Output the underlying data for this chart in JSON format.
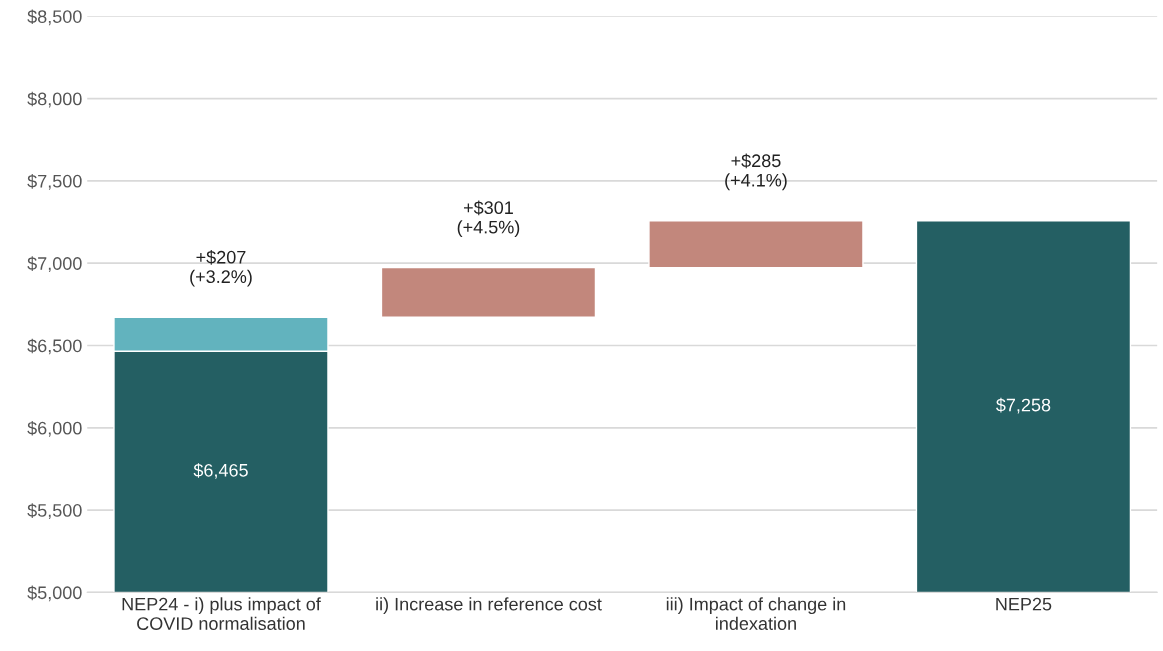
{
  "chart_data": {
    "type": "bar",
    "categories": [
      "NEP24 - i) plus impact of\nCOVID normalisation",
      "ii) Increase in reference cost",
      "iii) Impact of change in\nindexation",
      "NEP25"
    ],
    "series": [
      {
        "color": "#245f63",
        "values": [
          6465,
          null,
          null,
          7258
        ],
        "value_labels": [
          "$6,465",
          null,
          null,
          "$7,258"
        ]
      },
      {
        "color": "#62b3be",
        "values": [
          207,
          null,
          null,
          null
        ],
        "base": [
          6465,
          null,
          null,
          null
        ],
        "value_labels": [
          "+$207\n(+3.2%)",
          null,
          null,
          null
        ]
      },
      {
        "color": "#c2877c",
        "values": [
          null,
          301,
          285,
          null
        ],
        "base": [
          null,
          6672,
          6973,
          null
        ],
        "value_labels": [
          null,
          "+$301\n(+4.5%)",
          "+$285\n(+4.1%)",
          null
        ]
      }
    ],
    "ylim": [
      5000,
      8500
    ],
    "yticks": [
      {
        "value": 5000,
        "label": "$5,000"
      },
      {
        "value": 5500,
        "label": "$5,500"
      },
      {
        "value": 6000,
        "label": "$6,000"
      },
      {
        "value": 6500,
        "label": "$6,500"
      },
      {
        "value": 7000,
        "label": "$7,000"
      },
      {
        "value": 7500,
        "label": "$7,500"
      },
      {
        "value": 8000,
        "label": "$8,000"
      },
      {
        "value": 8500,
        "label": "$8,500"
      }
    ],
    "grid": "y",
    "legend": false
  }
}
